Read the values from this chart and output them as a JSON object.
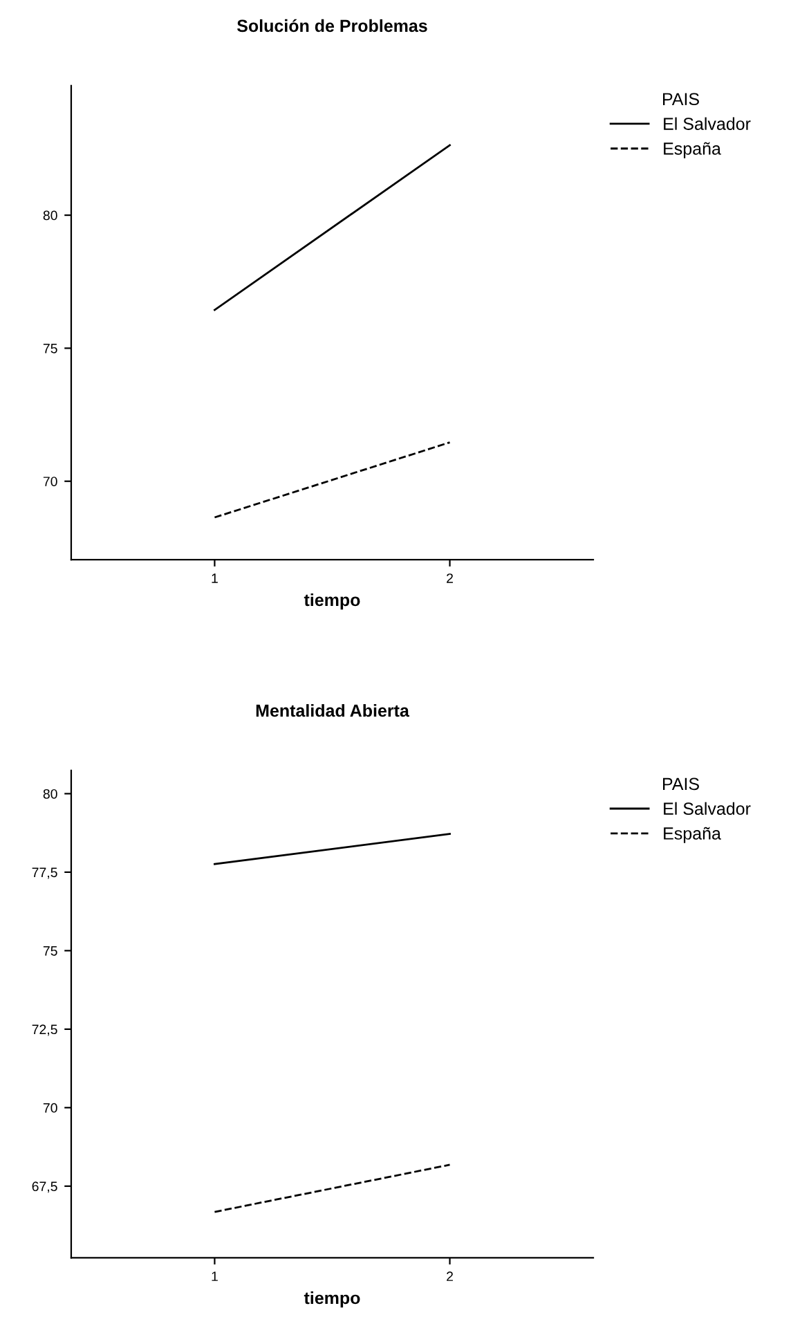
{
  "chart_data": [
    {
      "type": "line",
      "title": "Solución de Problemas",
      "xlabel": "tiempo",
      "legend_title": "PAIS",
      "categories": [
        "1",
        "2"
      ],
      "ylim": [
        67.05,
        84.87
      ],
      "yticks": [
        70,
        75,
        80
      ],
      "grid": false,
      "legend": "top right",
      "marker": "none",
      "series": [
        {
          "name": "El Salvador",
          "color": "#000000",
          "line_style": "solid",
          "values": [
            76.44,
            82.63
          ]
        },
        {
          "name": "España",
          "color": "#000000",
          "line_style": "dashed",
          "values": [
            68.64,
            71.46
          ]
        }
      ]
    },
    {
      "type": "line",
      "title": "Mentalidad Abierta",
      "xlabel": "tiempo",
      "legend_title": "PAIS",
      "categories": [
        "1",
        "2"
      ],
      "ylim": [
        65.22,
        80.74
      ],
      "yticks": [
        {
          "value": 67.5,
          "label": "67,5"
        },
        70,
        {
          "value": 72.5,
          "label": "72,5"
        },
        75,
        {
          "value": 77.5,
          "label": "77,5"
        },
        80
      ],
      "grid": false,
      "legend": "top right",
      "marker": "none",
      "series": [
        {
          "name": "El Salvador",
          "color": "#000000",
          "line_style": "solid",
          "values": [
            77.76,
            78.72
          ]
        },
        {
          "name": "España",
          "color": "#000000",
          "line_style": "dashed",
          "values": [
            66.68,
            68.18
          ]
        }
      ]
    }
  ]
}
